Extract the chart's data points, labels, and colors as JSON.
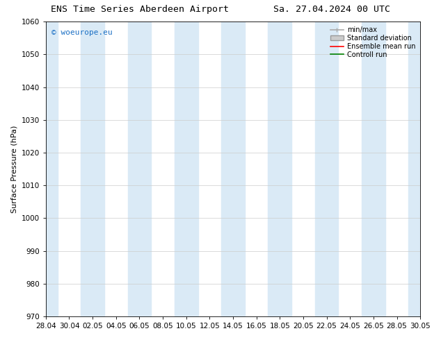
{
  "title_left": "ENS Time Series Aberdeen Airport",
  "title_right": "Sa. 27.04.2024 00 UTC",
  "ylabel": "Surface Pressure (hPa)",
  "ylim": [
    970,
    1060
  ],
  "yticks": [
    970,
    980,
    990,
    1000,
    1010,
    1020,
    1030,
    1040,
    1050,
    1060
  ],
  "xtick_labels": [
    "28.04",
    "30.04",
    "02.05",
    "04.05",
    "06.05",
    "08.05",
    "10.05",
    "12.05",
    "14.05",
    "16.05",
    "18.05",
    "20.05",
    "22.05",
    "24.05",
    "26.05",
    "28.05",
    "30.05"
  ],
  "shaded_color": "#daeaf6",
  "background_color": "#ffffff",
  "watermark_text": "© woeurope.eu",
  "watermark_color": "#1a6fc4",
  "title_fontsize": 9.5,
  "axis_fontsize": 8,
  "tick_fontsize": 7.5,
  "grid_color": "#cccccc",
  "spine_color": "#000000",
  "legend_fontsize": 7,
  "minmax_color": "#aaaaaa",
  "stddev_color": "#cccccc",
  "ensemble_color": "#ff0000",
  "control_color": "#008000"
}
